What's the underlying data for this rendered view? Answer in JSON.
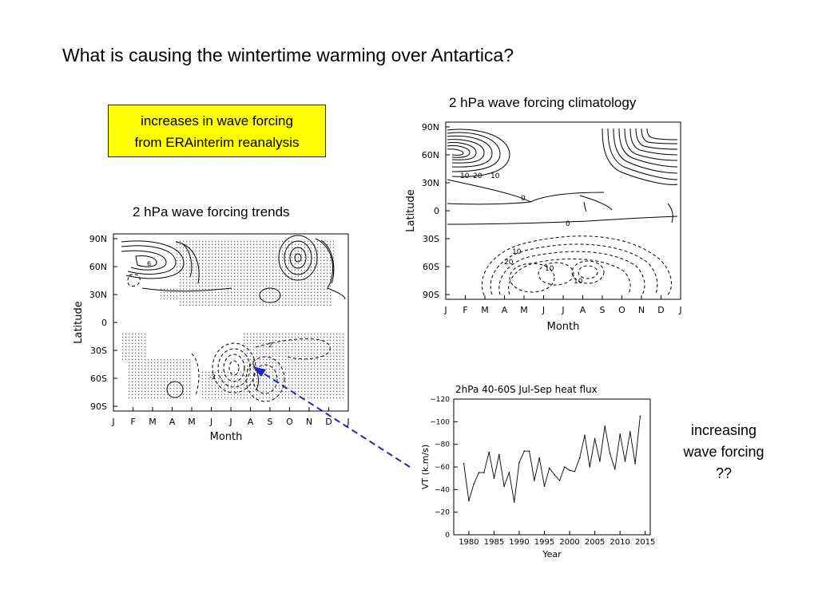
{
  "slide": {
    "title": "What is causing the wintertime warming over Antartica?",
    "callout_line1": "increases in wave forcing",
    "callout_line2": "from ERAinterim reanalysis",
    "trends_caption": "2 hPa wave forcing trends",
    "climatology_caption": "2 hPa wave forcing climatology",
    "note_line1": "increasing",
    "note_line2": "wave forcing",
    "note_line3": "??",
    "colors": {
      "callout_bg": "#ffff00",
      "arrow": "#2222cc"
    }
  },
  "chart_data": [
    {
      "type": "contour",
      "title": "",
      "xlabel": "Month",
      "ylabel": "Latitude",
      "x_ticks": [
        "J",
        "F",
        "M",
        "A",
        "M",
        "J",
        "J",
        "A",
        "S",
        "O",
        "N",
        "D",
        "J"
      ],
      "y_ticks": [
        "90N",
        "60N",
        "30N",
        "0",
        "30S",
        "60S",
        "90S"
      ],
      "contour_labels": [
        "6",
        "2",
        "-2"
      ],
      "stippling": true
    },
    {
      "type": "contour",
      "title": "",
      "xlabel": "Month",
      "ylabel": "Latitude",
      "x_ticks": [
        "J",
        "F",
        "M",
        "A",
        "M",
        "J",
        "J",
        "A",
        "S",
        "O",
        "N",
        "D",
        "J"
      ],
      "y_ticks": [
        "90N",
        "60N",
        "30N",
        "0",
        "30S",
        "60S",
        "90S"
      ],
      "contour_labels": [
        "10",
        "20",
        "10",
        "0",
        "0",
        "10",
        "20",
        "10",
        "10"
      ],
      "stippling": false
    },
    {
      "type": "line",
      "title": "2hPa 40-60S Jul-Sep heat flux",
      "xlabel": "Year",
      "ylabel": "VT (k.m/s)",
      "x_ticks": [
        "1980",
        "1985",
        "1990",
        "1995",
        "2000",
        "2005",
        "2010",
        "2015"
      ],
      "y_ticks": [
        "−120",
        "−100",
        "−80",
        "−60",
        "−40",
        "−20",
        "0"
      ],
      "xlim": [
        1977,
        2016
      ],
      "ylim": [
        0,
        -120
      ],
      "x": [
        1979,
        1980,
        1981,
        1982,
        1983,
        1984,
        1985,
        1986,
        1987,
        1988,
        1989,
        1990,
        1991,
        1992,
        1993,
        1994,
        1995,
        1996,
        1997,
        1998,
        1999,
        2000,
        2001,
        2002,
        2003,
        2004,
        2005,
        2006,
        2007,
        2008,
        2009,
        2010,
        2011,
        2012,
        2013,
        2014
      ],
      "series": [
        {
          "values": [
            -63,
            -30,
            -45,
            -55,
            -55,
            -73,
            -50,
            -71,
            -43,
            -55,
            -29,
            -64,
            -74,
            -74,
            -48,
            -68,
            -43,
            -59,
            -53,
            -48,
            -60,
            -57,
            -56,
            -68,
            -88,
            -60,
            -85,
            -65,
            -96,
            -72,
            -58,
            -89,
            -65,
            -91,
            -63,
            -105
          ]
        }
      ]
    }
  ]
}
